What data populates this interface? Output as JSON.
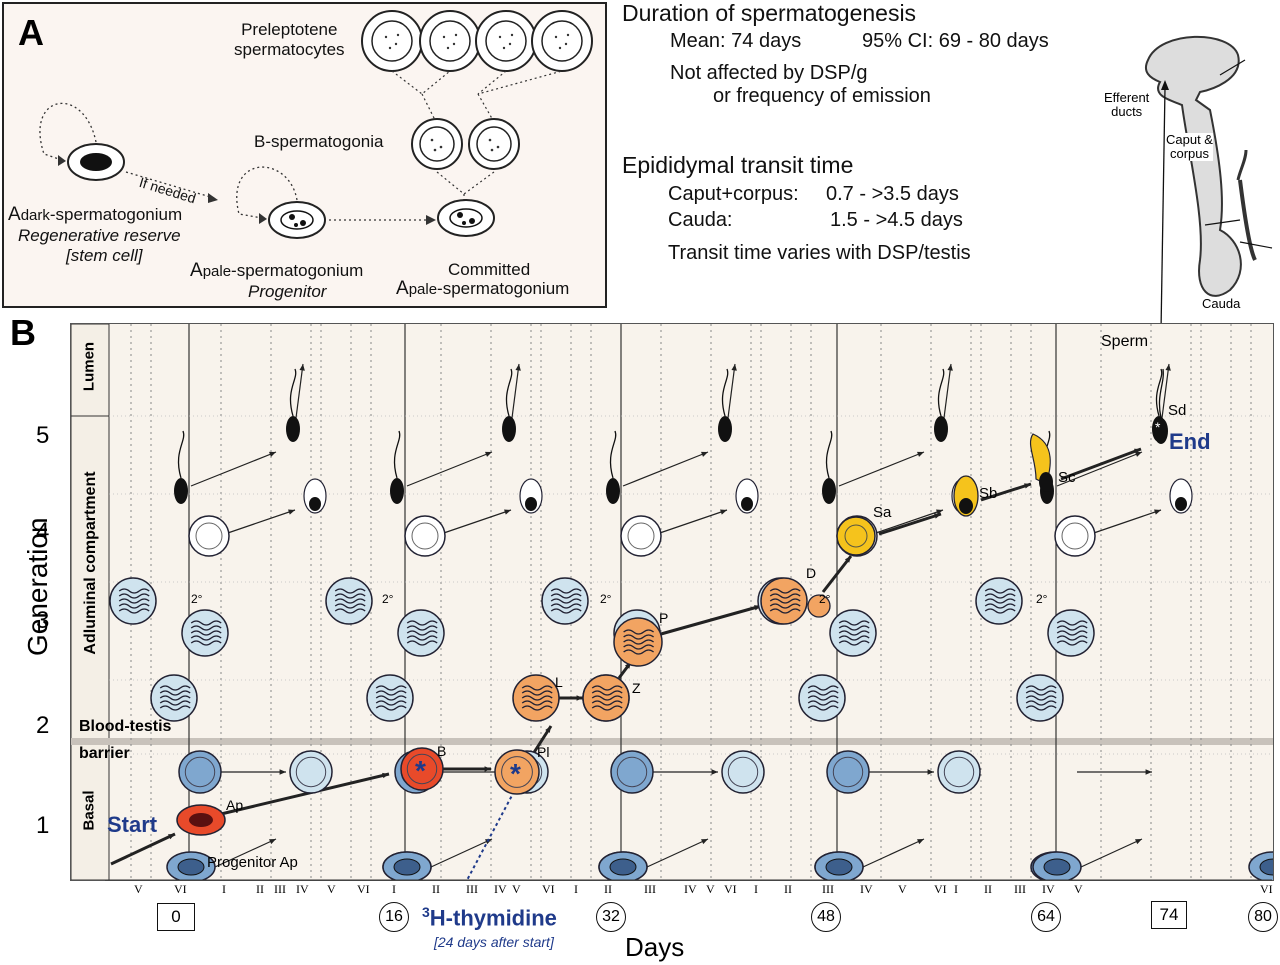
{
  "panel_a": {
    "label": "A",
    "preleptotene": [
      "Preleptotene",
      "spermatocytes"
    ],
    "b_spermatogonia": "B-spermatogonia",
    "if_needed": "If needed",
    "adark_prefix": "A",
    "adark_sub": "dark",
    "adark_suffix": "-spermatogonium",
    "regen": "Regenerative reserve",
    "stem": "[stem cell]",
    "apale_prefix": "A",
    "apale_sub": "pale",
    "apale_suffix": "-spermatogonium",
    "progenitor": "Progenitor",
    "committed": "Committed",
    "committed_prefix": "A",
    "committed_sub": "pale",
    "committed_suffix": "-spermatogonium"
  },
  "right_text": {
    "duration_title": "Duration of spermatogenesis",
    "mean": "Mean:  74 days",
    "ci": "95% CI:  69 - 80 days",
    "not_affected_1": "Not affected by DSP/g",
    "not_affected_2": "or frequency of emission",
    "transit_title": "Epididymal transit time",
    "caput_label": "Caput+corpus:",
    "caput_value": "0.7 - >3.5 days",
    "cauda_label": "Cauda:",
    "cauda_value": "1.5 - >4.5 days",
    "varies": "Transit time varies with DSP/testis"
  },
  "epididymis": {
    "efferent": [
      "Efferent",
      "ducts"
    ],
    "caput": [
      "Caput &",
      "corpus"
    ],
    "cauda": "Cauda"
  },
  "panel_b": {
    "label": "B",
    "y_axis_title": "Generation",
    "generations": [
      "1",
      "2",
      "3",
      "4",
      "5"
    ],
    "lumen": "Lumen",
    "adluminal": "Adluminal compartment",
    "basal": "Basal",
    "barrier_1": "Blood-testis",
    "barrier_2": "barrier",
    "start": "Start",
    "end": "End",
    "sperm": "Sperm",
    "ap": "Ap",
    "progenitor_ap": "Progenitor Ap",
    "b": "B",
    "pl": "Pl",
    "l": "L",
    "z": "Z",
    "p": "P",
    "d": "D",
    "sa": "Sa",
    "sb": "Sb",
    "sc": "Sc",
    "sd": "Sd",
    "second": "2°",
    "stage_numerals": [
      "V",
      "VI",
      "I",
      "II",
      "III",
      "IV",
      "V",
      "VI",
      "I",
      "II",
      "III",
      "IV",
      "V",
      "VI",
      "I",
      "II",
      "III",
      "IV",
      "V",
      "VI",
      "I",
      "II",
      "III",
      "IV",
      "V",
      "VI",
      "I",
      "II",
      "III",
      "IV",
      "V",
      "VI"
    ],
    "days_boxed": [
      "0",
      "74"
    ],
    "days_circled": [
      "16",
      "32",
      "48",
      "64",
      "80"
    ],
    "x_axis_title": "Days",
    "thymidine_sup": "3",
    "thymidine": "H-thymidine",
    "thymidine_note": "[24 days after start]"
  },
  "colors": {
    "red": "#e84a2a",
    "orange": "#f2a462",
    "yellow": "#f5c31c",
    "blue_cell": "#7fa7cf",
    "light_cell": "#cfe3ee",
    "navy_text": "#1f3a8a"
  }
}
